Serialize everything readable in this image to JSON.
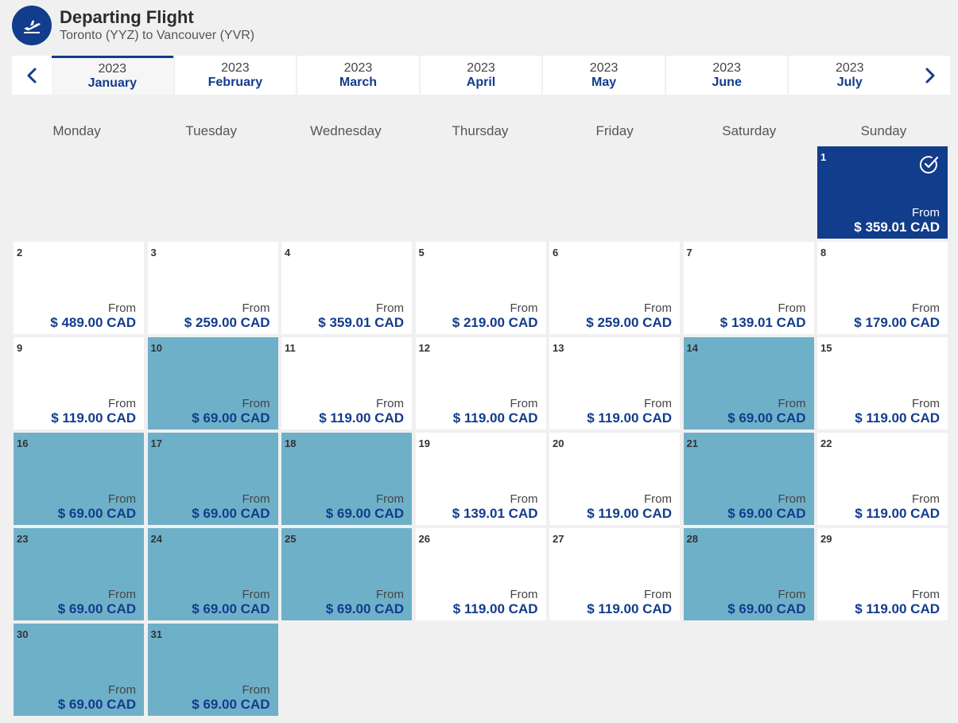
{
  "header": {
    "title": "Departing Flight",
    "subtitle": "Toronto (YYZ) to Vancouver (YVR)"
  },
  "month_tabs": [
    {
      "year": "2023",
      "month": "January",
      "active": true
    },
    {
      "year": "2023",
      "month": "February",
      "active": false
    },
    {
      "year": "2023",
      "month": "March",
      "active": false
    },
    {
      "year": "2023",
      "month": "April",
      "active": false
    },
    {
      "year": "2023",
      "month": "May",
      "active": false
    },
    {
      "year": "2023",
      "month": "June",
      "active": false
    },
    {
      "year": "2023",
      "month": "July",
      "active": false
    }
  ],
  "weekdays": [
    "Monday",
    "Tuesday",
    "Wednesday",
    "Thursday",
    "Friday",
    "Saturday",
    "Sunday"
  ],
  "from_label": "From",
  "leading_blank_days": 6,
  "days": [
    {
      "day": "1",
      "price": "$ 359.01 CAD",
      "state": "selected"
    },
    {
      "day": "2",
      "price": "$ 489.00 CAD",
      "state": "normal"
    },
    {
      "day": "3",
      "price": "$ 259.00 CAD",
      "state": "normal"
    },
    {
      "day": "4",
      "price": "$ 359.01 CAD",
      "state": "normal"
    },
    {
      "day": "5",
      "price": "$ 219.00 CAD",
      "state": "normal"
    },
    {
      "day": "6",
      "price": "$ 259.00 CAD",
      "state": "normal"
    },
    {
      "day": "7",
      "price": "$ 139.01 CAD",
      "state": "normal"
    },
    {
      "day": "8",
      "price": "$ 179.00 CAD",
      "state": "normal"
    },
    {
      "day": "9",
      "price": "$ 119.00 CAD",
      "state": "normal"
    },
    {
      "day": "10",
      "price": "$ 69.00 CAD",
      "state": "cheap"
    },
    {
      "day": "11",
      "price": "$ 119.00 CAD",
      "state": "normal"
    },
    {
      "day": "12",
      "price": "$ 119.00 CAD",
      "state": "normal"
    },
    {
      "day": "13",
      "price": "$ 119.00 CAD",
      "state": "normal"
    },
    {
      "day": "14",
      "price": "$ 69.00 CAD",
      "state": "cheap"
    },
    {
      "day": "15",
      "price": "$ 119.00 CAD",
      "state": "normal"
    },
    {
      "day": "16",
      "price": "$ 69.00 CAD",
      "state": "cheap"
    },
    {
      "day": "17",
      "price": "$ 69.00 CAD",
      "state": "cheap"
    },
    {
      "day": "18",
      "price": "$ 69.00 CAD",
      "state": "cheap"
    },
    {
      "day": "19",
      "price": "$ 139.01 CAD",
      "state": "normal"
    },
    {
      "day": "20",
      "price": "$ 119.00 CAD",
      "state": "normal"
    },
    {
      "day": "21",
      "price": "$ 69.00 CAD",
      "state": "cheap"
    },
    {
      "day": "22",
      "price": "$ 119.00 CAD",
      "state": "normal"
    },
    {
      "day": "23",
      "price": "$ 69.00 CAD",
      "state": "cheap"
    },
    {
      "day": "24",
      "price": "$ 69.00 CAD",
      "state": "cheap"
    },
    {
      "day": "25",
      "price": "$ 69.00 CAD",
      "state": "cheap"
    },
    {
      "day": "26",
      "price": "$ 119.00 CAD",
      "state": "normal"
    },
    {
      "day": "27",
      "price": "$ 119.00 CAD",
      "state": "normal"
    },
    {
      "day": "28",
      "price": "$ 69.00 CAD",
      "state": "cheap"
    },
    {
      "day": "29",
      "price": "$ 119.00 CAD",
      "state": "normal"
    },
    {
      "day": "30",
      "price": "$ 69.00 CAD",
      "state": "cheap"
    },
    {
      "day": "31",
      "price": "$ 69.00 CAD",
      "state": "cheap"
    }
  ],
  "colors": {
    "brand_navy": "#123c8c",
    "cheap_day": "#6fb0c9",
    "background": "#f0f0f0"
  },
  "icons": {
    "header": "airplane-takeoff-icon",
    "prev": "chevron-left-icon",
    "next": "chevron-right-icon",
    "selected": "check-circle-icon"
  }
}
